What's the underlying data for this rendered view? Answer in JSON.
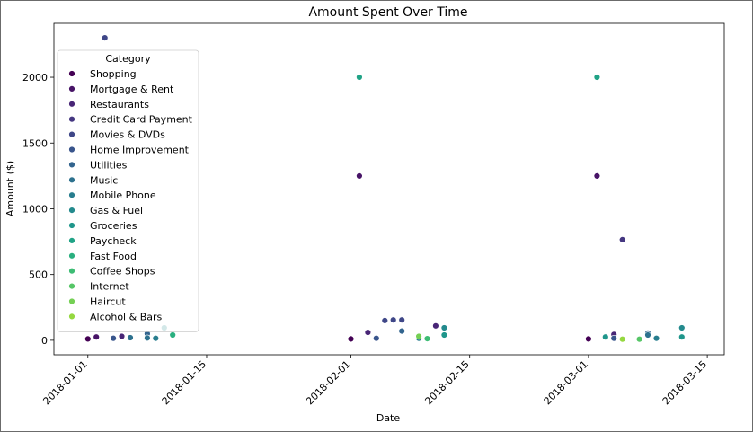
{
  "chart_data": {
    "type": "scatter",
    "title": "Amount Spent Over Time",
    "xlabel": "Date",
    "ylabel": "Amount ($)",
    "x_ticks": [
      "2018-01-01",
      "2018-01-15",
      "2018-02-01",
      "2018-02-15",
      "2018-03-01",
      "2018-03-15"
    ],
    "y_ticks": [
      0,
      500,
      1000,
      1500,
      2000
    ],
    "xlim": [
      "2017-12-28",
      "2018-03-17"
    ],
    "ylim": [
      -110,
      2410
    ],
    "grid": false,
    "legend": {
      "title": "Category",
      "placement": "upper-left"
    },
    "series": [
      {
        "name": "Shopping",
        "color": "#440154",
        "points": [
          [
            "2018-01-01",
            10
          ],
          [
            "2018-02-01",
            10
          ],
          [
            "2018-03-01",
            10
          ]
        ]
      },
      {
        "name": "Mortgage & Rent",
        "color": "#481467",
        "points": [
          [
            "2018-01-02",
            25
          ],
          [
            "2018-02-02",
            1250
          ],
          [
            "2018-03-02",
            1250
          ]
        ]
      },
      {
        "name": "Restaurants",
        "color": "#482576",
        "points": [
          [
            "2018-01-05",
            30
          ],
          [
            "2018-02-03",
            60
          ],
          [
            "2018-02-11",
            110
          ],
          [
            "2018-03-04",
            45
          ]
        ]
      },
      {
        "name": "Credit Card Payment",
        "color": "#453781",
        "points": [
          [
            "2018-03-05",
            765
          ]
        ]
      },
      {
        "name": "Movies & DVDs",
        "color": "#3f4788",
        "points": [
          [
            "2018-01-03",
            2300
          ],
          [
            "2018-02-05",
            150
          ],
          [
            "2018-02-06",
            155
          ],
          [
            "2018-02-07",
            155
          ]
        ]
      },
      {
        "name": "Home Improvement",
        "color": "#39558c",
        "points": [
          [
            "2018-01-04",
            15
          ],
          [
            "2018-02-04",
            15
          ],
          [
            "2018-03-04",
            15
          ]
        ]
      },
      {
        "name": "Utilities",
        "color": "#32648e",
        "points": [
          [
            "2018-01-08",
            50
          ],
          [
            "2018-02-07",
            70
          ],
          [
            "2018-03-08",
            55
          ]
        ]
      },
      {
        "name": "Music",
        "color": "#2d718e",
        "points": [
          [
            "2018-01-06",
            20
          ],
          [
            "2018-01-08",
            18
          ],
          [
            "2018-03-08",
            40
          ]
        ]
      },
      {
        "name": "Mobile Phone",
        "color": "#287d8e",
        "points": [
          [
            "2018-01-09",
            15
          ],
          [
            "2018-02-09",
            15
          ],
          [
            "2018-03-09",
            15
          ]
        ]
      },
      {
        "name": "Gas & Fuel",
        "color": "#238a8d",
        "points": [
          [
            "2018-01-10",
            95
          ],
          [
            "2018-02-12",
            95
          ],
          [
            "2018-03-12",
            95
          ]
        ]
      },
      {
        "name": "Groceries",
        "color": "#1f968b",
        "points": [
          [
            "2018-01-11",
            45
          ],
          [
            "2018-02-12",
            40
          ],
          [
            "2018-03-03",
            25
          ],
          [
            "2018-03-12",
            25
          ]
        ]
      },
      {
        "name": "Paycheck",
        "color": "#20a386",
        "points": [
          [
            "2018-02-02",
            2000
          ],
          [
            "2018-03-02",
            2000
          ]
        ]
      },
      {
        "name": "Fast Food",
        "color": "#29af7f",
        "points": [
          [
            "2018-01-11",
            40
          ]
        ]
      },
      {
        "name": "Coffee Shops",
        "color": "#3dbc74",
        "points": [
          [
            "2018-02-10",
            12
          ]
        ]
      },
      {
        "name": "Internet",
        "color": "#56c667",
        "points": [
          [
            "2018-03-07",
            8
          ]
        ]
      },
      {
        "name": "Haircut",
        "color": "#75d054",
        "points": [
          [
            "2018-02-09",
            30
          ]
        ]
      },
      {
        "name": "Alcohol & Bars",
        "color": "#95d840",
        "points": [
          [
            "2018-03-05",
            8
          ]
        ]
      }
    ]
  }
}
